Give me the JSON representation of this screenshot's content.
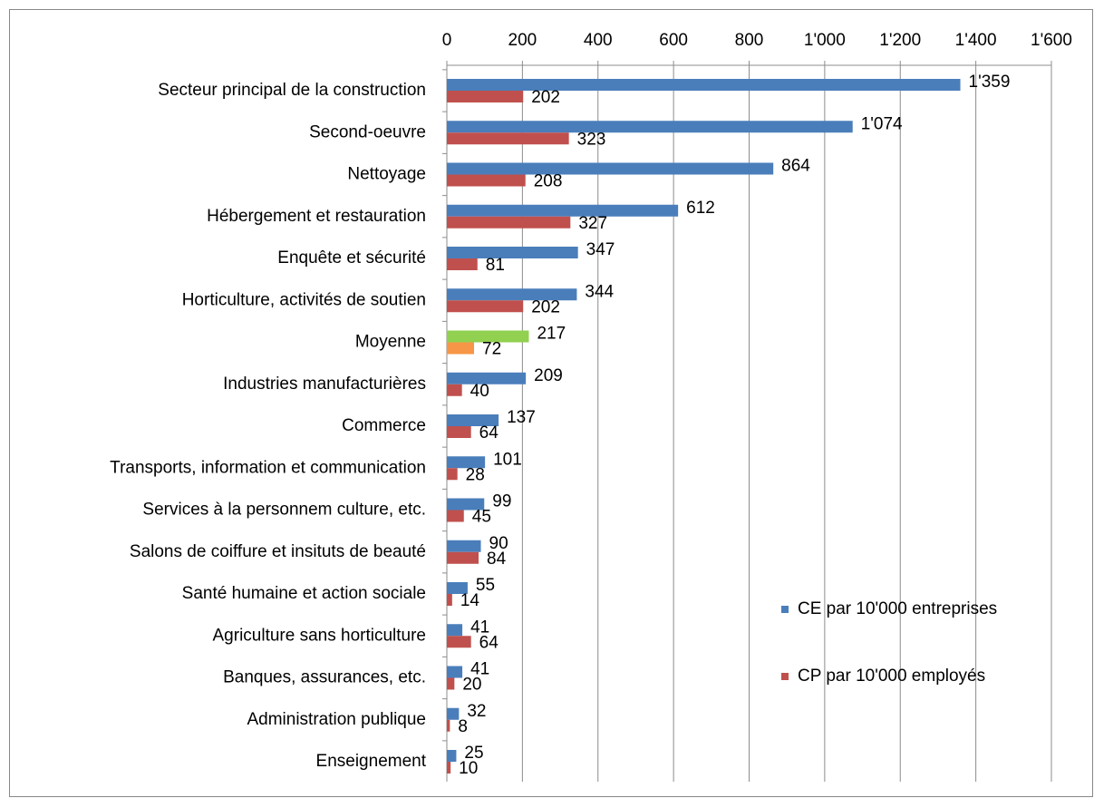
{
  "chart_data": {
    "type": "hbar",
    "categories": [
      "Secteur principal de la construction",
      "Second-oeuvre",
      "Nettoyage",
      "Hébergement et restauration",
      "Enquête et sécurité",
      "Horticulture, activités de soutien",
      "Moyenne",
      "Industries manufacturières",
      "Commerce",
      "Transports, information et communication",
      "Services à la personnem culture, etc.",
      "Salons de coiffure et insituts de beauté",
      "Santé humaine et action sociale",
      "Agriculture sans horticulture",
      "Banques, assurances, etc.",
      "Administration publique",
      "Enseignement"
    ],
    "series": [
      {
        "name": "CE par 10'000 entreprises",
        "color": "#4a7ebb",
        "colors": [
          "#4a7ebb",
          "#4a7ebb",
          "#4a7ebb",
          "#4a7ebb",
          "#4a7ebb",
          "#4a7ebb",
          "#92d050",
          "#4a7ebb",
          "#4a7ebb",
          "#4a7ebb",
          "#4a7ebb",
          "#4a7ebb",
          "#4a7ebb",
          "#4a7ebb",
          "#4a7ebb",
          "#4a7ebb",
          "#4a7ebb"
        ],
        "values": [
          1359,
          1074,
          864,
          612,
          347,
          344,
          217,
          209,
          137,
          101,
          99,
          90,
          55,
          41,
          41,
          32,
          25
        ],
        "value_labels": [
          "1'359",
          "1'074",
          "864",
          "612",
          "347",
          "344",
          "217",
          "209",
          "137",
          "101",
          "99",
          "90",
          "55",
          "41",
          "41",
          "32",
          "25"
        ]
      },
      {
        "name": "CP par 10'000 employés",
        "color": "#c0504d",
        "colors": [
          "#c0504d",
          "#c0504d",
          "#c0504d",
          "#c0504d",
          "#c0504d",
          "#c0504d",
          "#f79646",
          "#c0504d",
          "#c0504d",
          "#c0504d",
          "#c0504d",
          "#c0504d",
          "#c0504d",
          "#c0504d",
          "#c0504d",
          "#c0504d",
          "#c0504d"
        ],
        "values": [
          202,
          323,
          208,
          327,
          81,
          202,
          72,
          40,
          64,
          28,
          45,
          84,
          14,
          64,
          20,
          8,
          10
        ]
      }
    ],
    "xlim": [
      0,
      1600
    ],
    "xticks": [
      0,
      200,
      400,
      600,
      800,
      {
        "value": 1000,
        "label": "1'000"
      },
      {
        "value": 1200,
        "label": "1'200"
      },
      {
        "value": 1400,
        "label": "1'400"
      },
      {
        "value": 1600,
        "label": "1'600"
      }
    ],
    "grid": true,
    "legend": "right"
  }
}
